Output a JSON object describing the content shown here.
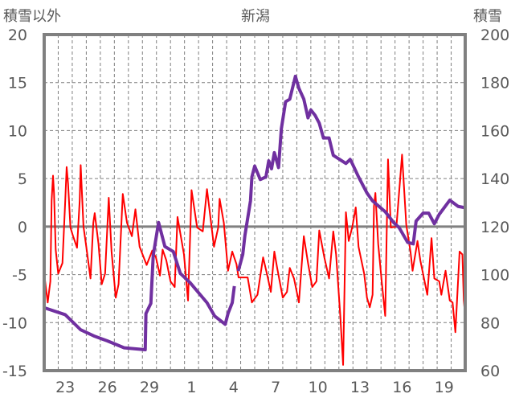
{
  "chart_data": {
    "type": "line",
    "title": "新潟",
    "left_axis_label": "積雪以外",
    "right_axis_label": "積雪",
    "x_unit": "days since Jan 22 00:00",
    "xlim": [
      0,
      30
    ],
    "x_ticks": [
      {
        "day": 1.5,
        "label": "23"
      },
      {
        "day": 4.5,
        "label": "26"
      },
      {
        "day": 7.5,
        "label": "29"
      },
      {
        "day": 10.5,
        "label": "1"
      },
      {
        "day": 13.5,
        "label": "4"
      },
      {
        "day": 16.5,
        "label": "7"
      },
      {
        "day": 19.5,
        "label": "10"
      },
      {
        "day": 22.5,
        "label": "13"
      },
      {
        "day": 25.5,
        "label": "16"
      },
      {
        "day": 28.5,
        "label": "19"
      }
    ],
    "ylim_left": [
      -15,
      20
    ],
    "yticks_left": [
      "20",
      "15",
      "10",
      "5",
      "0",
      "-5",
      "-10",
      "-15"
    ],
    "ylim_right": [
      60,
      200
    ],
    "yticks_right": [
      "200",
      "180",
      "160",
      "140",
      "120",
      "100",
      "80",
      "60"
    ],
    "grid": true,
    "colors": {
      "other": "#FF0000",
      "snow": "#7030A0",
      "frame": "#808080",
      "grid": "#7f7f7f"
    },
    "series": [
      {
        "name": "積雪以外",
        "axis": "left",
        "color": "#FF0000",
        "points": [
          [
            0,
            -4.9
          ],
          [
            0.25,
            -7.9
          ],
          [
            0.44,
            -5.7
          ],
          [
            0.53,
            2.7
          ],
          [
            0.63,
            5.3
          ],
          [
            0.7,
            3.5
          ],
          [
            0.82,
            -2.4
          ],
          [
            1.0,
            -4.9
          ],
          [
            1.3,
            -3.8
          ],
          [
            1.5,
            2.7
          ],
          [
            1.6,
            6.2
          ],
          [
            1.7,
            4.5
          ],
          [
            1.87,
            -0.1
          ],
          [
            2.06,
            -1.0
          ],
          [
            2.34,
            -2.2
          ],
          [
            2.53,
            2.7
          ],
          [
            2.6,
            6.4
          ],
          [
            2.8,
            0.0
          ],
          [
            3.0,
            -2.1
          ],
          [
            3.3,
            -5.4
          ],
          [
            3.5,
            0.4
          ],
          [
            3.6,
            1.4
          ],
          [
            3.87,
            -1.8
          ],
          [
            4.1,
            -6.0
          ],
          [
            4.34,
            -4.9
          ],
          [
            4.6,
            3.0
          ],
          [
            4.8,
            -2.6
          ],
          [
            5.1,
            -7.4
          ],
          [
            5.3,
            -6.0
          ],
          [
            5.6,
            3.4
          ],
          [
            5.9,
            0.4
          ],
          [
            6.25,
            -1.0
          ],
          [
            6.5,
            1.8
          ],
          [
            6.8,
            -2.1
          ],
          [
            7.3,
            -4.0
          ],
          [
            7.7,
            -2.5
          ],
          [
            7.96,
            -3.2
          ],
          [
            8.25,
            -5.1
          ],
          [
            8.44,
            -2.4
          ],
          [
            8.7,
            -3.5
          ],
          [
            9.0,
            -5.7
          ],
          [
            9.3,
            -6.3
          ],
          [
            9.5,
            1.0
          ],
          [
            9.96,
            -2.9
          ],
          [
            10.25,
            -7.7
          ],
          [
            10.4,
            -1.0
          ],
          [
            10.5,
            3.8
          ],
          [
            10.9,
            -0.1
          ],
          [
            11.3,
            -0.5
          ],
          [
            11.6,
            3.9
          ],
          [
            12.1,
            -2.1
          ],
          [
            12.4,
            -0.1
          ],
          [
            12.5,
            2.9
          ],
          [
            12.8,
            0.4
          ],
          [
            13.1,
            -4.6
          ],
          [
            13.4,
            -2.6
          ],
          [
            13.7,
            -3.9
          ],
          [
            13.85,
            -5.3
          ],
          [
            14.06,
            -5.3
          ],
          [
            14.5,
            -5.3
          ],
          [
            14.8,
            -7.9
          ],
          [
            15.2,
            -7.1
          ],
          [
            15.6,
            -3.2
          ],
          [
            15.9,
            -5.1
          ],
          [
            16.15,
            -6.8
          ],
          [
            16.4,
            -2.6
          ],
          [
            16.6,
            -4.3
          ],
          [
            17.0,
            -7.4
          ],
          [
            17.3,
            -6.8
          ],
          [
            17.5,
            -4.3
          ],
          [
            17.8,
            -5.4
          ],
          [
            18.15,
            -7.9
          ],
          [
            18.5,
            -1.0
          ],
          [
            18.8,
            -3.8
          ],
          [
            19.1,
            -6.3
          ],
          [
            19.4,
            -5.7
          ],
          [
            19.6,
            -0.4
          ],
          [
            19.96,
            -3.2
          ],
          [
            20.3,
            -5.4
          ],
          [
            20.6,
            -0.5
          ],
          [
            20.8,
            -2.9
          ],
          [
            21.1,
            -9.3
          ],
          [
            21.3,
            -14.4
          ],
          [
            21.5,
            1.5
          ],
          [
            21.7,
            -1.5
          ],
          [
            21.96,
            0.0
          ],
          [
            22.2,
            2.0
          ],
          [
            22.4,
            -2.1
          ],
          [
            22.8,
            -4.9
          ],
          [
            23.0,
            -7.4
          ],
          [
            23.2,
            -8.4
          ],
          [
            23.4,
            -7.1
          ],
          [
            23.5,
            2.1
          ],
          [
            23.6,
            3.5
          ],
          [
            23.8,
            -1.8
          ],
          [
            24.05,
            -5.7
          ],
          [
            24.3,
            -9.3
          ],
          [
            24.5,
            7.0
          ],
          [
            24.7,
            -0.1
          ],
          [
            25.1,
            0.0
          ],
          [
            25.5,
            7.5
          ],
          [
            25.8,
            0.2
          ],
          [
            26.1,
            -2.6
          ],
          [
            26.25,
            -4.6
          ],
          [
            26.6,
            -1.5
          ],
          [
            26.8,
            -3.5
          ],
          [
            27.3,
            -7.1
          ],
          [
            27.6,
            -1.2
          ],
          [
            27.8,
            -5.4
          ],
          [
            28.15,
            -5.7
          ],
          [
            28.3,
            -7.1
          ],
          [
            28.6,
            -4.6
          ],
          [
            28.9,
            -7.7
          ],
          [
            29.1,
            -7.9
          ],
          [
            29.3,
            -11.0
          ],
          [
            29.6,
            -2.6
          ],
          [
            29.8,
            -2.9
          ],
          [
            29.9,
            -7.7
          ],
          [
            30.0,
            -9.3
          ]
        ]
      },
      {
        "name": "積雪",
        "axis": "right",
        "color": "#7030A0",
        "segments": [
          [
            [
              0,
              86.2
            ],
            [
              1.5,
              83.3
            ],
            [
              2.6,
              77
            ],
            [
              3.6,
              74.3
            ],
            [
              4.5,
              72.4
            ],
            [
              5.7,
              69.5
            ],
            [
              7.2,
              68.7
            ],
            [
              7.25,
              83.8
            ],
            [
              7.6,
              88
            ],
            [
              7.77,
              108
            ],
            [
              8.15,
              121.7
            ],
            [
              8.6,
              111.7
            ],
            [
              9.2,
              109.6
            ],
            [
              9.7,
              100.5
            ],
            [
              10.4,
              96.6
            ],
            [
              11.6,
              88.3
            ],
            [
              12.15,
              82.7
            ],
            [
              12.9,
              79.3
            ],
            [
              13.1,
              83.8
            ],
            [
              13.4,
              88.3
            ],
            [
              13.55,
              95.2
            ]
          ],
          [
            [
              13.83,
              101.5
            ],
            [
              14.15,
              108.4
            ],
            [
              14.3,
              116.2
            ],
            [
              14.7,
              130.7
            ],
            [
              14.8,
              140.7
            ],
            [
              15.0,
              145.2
            ],
            [
              15.4,
              139.6
            ],
            [
              15.8,
              140.7
            ],
            [
              16.0,
              147.4
            ],
            [
              16.2,
              144.1
            ],
            [
              16.4,
              150.8
            ],
            [
              16.7,
              144.6
            ],
            [
              16.9,
              160.8
            ],
            [
              17.2,
              172
            ],
            [
              17.5,
              173.1
            ],
            [
              17.9,
              182.6
            ],
            [
              18.15,
              177.6
            ],
            [
              18.5,
              173.1
            ],
            [
              18.8,
              165.3
            ],
            [
              19.0,
              168.6
            ],
            [
              19.3,
              166.4
            ],
            [
              19.6,
              163.1
            ],
            [
              19.9,
              156.9
            ],
            [
              20.3,
              156.9
            ],
            [
              20.6,
              149.7
            ],
            [
              21.5,
              146.3
            ],
            [
              21.8,
              148
            ],
            [
              21.95,
              146.3
            ],
            [
              22.4,
              140.7
            ],
            [
              23.0,
              134
            ],
            [
              23.4,
              130.7
            ],
            [
              24.3,
              126.2
            ],
            [
              24.9,
              121.7
            ],
            [
              25.3,
              119.5
            ],
            [
              25.9,
              113.4
            ],
            [
              26.3,
              112.8
            ],
            [
              26.5,
              122.3
            ],
            [
              27.0,
              125.6
            ],
            [
              27.4,
              125.6
            ],
            [
              27.8,
              121.2
            ],
            [
              28.15,
              125.1
            ],
            [
              28.9,
              131
            ],
            [
              29.5,
              128.4
            ],
            [
              29.95,
              127.9
            ]
          ]
        ]
      }
    ]
  }
}
